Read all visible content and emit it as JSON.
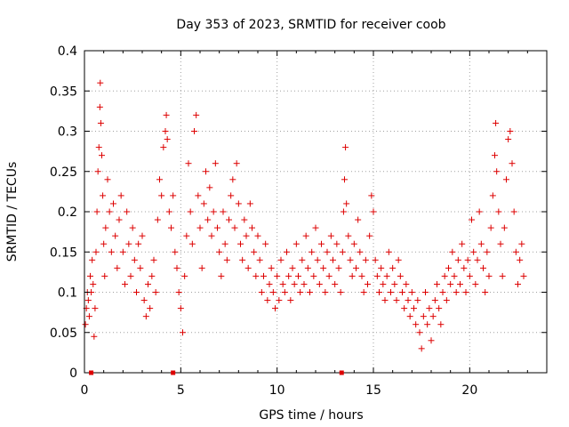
{
  "chart_data": {
    "type": "scatter",
    "title": "Day 353 of 2023, SRMTID for receiver coob",
    "xlabel": "GPS time / hours",
    "ylabel": "SRMTID / TECUs",
    "xlim": [
      0,
      24
    ],
    "ylim": [
      0,
      0.4
    ],
    "x_ticks": [
      "0",
      "5",
      "10",
      "15",
      "20"
    ],
    "x_tick_values": [
      0,
      5,
      10,
      15,
      20
    ],
    "y_ticks": [
      "0",
      "0.05",
      "0.1",
      "0.15",
      "0.2",
      "0.25",
      "0.3",
      "0.35",
      "0.4"
    ],
    "y_tick_values": [
      0,
      0.05,
      0.1,
      0.15,
      0.2,
      0.25,
      0.3,
      0.35,
      0.4
    ],
    "grid": true,
    "marker": "+",
    "color": "#dd0000",
    "zero_markers_x": [
      0.35,
      4.6,
      13.35
    ],
    "series": [
      {
        "name": "SRMTID",
        "points": [
          [
            0.05,
            0.06
          ],
          [
            0.1,
            0.08
          ],
          [
            0.15,
            0.1
          ],
          [
            0.2,
            0.09
          ],
          [
            0.25,
            0.07
          ],
          [
            0.3,
            0.12
          ],
          [
            0.35,
            0.1
          ],
          [
            0.4,
            0.14
          ],
          [
            0.45,
            0.11
          ],
          [
            0.5,
            0.045
          ],
          [
            0.55,
            0.08
          ],
          [
            0.6,
            0.15
          ],
          [
            0.65,
            0.2
          ],
          [
            0.7,
            0.25
          ],
          [
            0.75,
            0.28
          ],
          [
            0.8,
            0.33
          ],
          [
            0.82,
            0.36
          ],
          [
            0.85,
            0.31
          ],
          [
            0.9,
            0.27
          ],
          [
            0.95,
            0.22
          ],
          [
            1.0,
            0.16
          ],
          [
            1.05,
            0.12
          ],
          [
            1.1,
            0.18
          ],
          [
            1.2,
            0.24
          ],
          [
            1.3,
            0.2
          ],
          [
            1.4,
            0.15
          ],
          [
            1.5,
            0.21
          ],
          [
            1.6,
            0.17
          ],
          [
            1.7,
            0.13
          ],
          [
            1.8,
            0.19
          ],
          [
            1.9,
            0.22
          ],
          [
            2.0,
            0.15
          ],
          [
            2.1,
            0.11
          ],
          [
            2.2,
            0.2
          ],
          [
            2.3,
            0.16
          ],
          [
            2.4,
            0.12
          ],
          [
            2.5,
            0.18
          ],
          [
            2.6,
            0.14
          ],
          [
            2.7,
            0.1
          ],
          [
            2.8,
            0.16
          ],
          [
            2.9,
            0.13
          ],
          [
            3.0,
            0.17
          ],
          [
            3.1,
            0.09
          ],
          [
            3.2,
            0.07
          ],
          [
            3.3,
            0.11
          ],
          [
            3.4,
            0.08
          ],
          [
            3.5,
            0.12
          ],
          [
            3.6,
            0.14
          ],
          [
            3.7,
            0.1
          ],
          [
            3.8,
            0.19
          ],
          [
            3.9,
            0.24
          ],
          [
            4.0,
            0.22
          ],
          [
            4.1,
            0.28
          ],
          [
            4.2,
            0.3
          ],
          [
            4.25,
            0.32
          ],
          [
            4.3,
            0.29
          ],
          [
            4.4,
            0.2
          ],
          [
            4.5,
            0.18
          ],
          [
            4.6,
            0.22
          ],
          [
            4.7,
            0.15
          ],
          [
            4.8,
            0.13
          ],
          [
            4.9,
            0.1
          ],
          [
            5.0,
            0.08
          ],
          [
            5.1,
            0.05
          ],
          [
            5.2,
            0.12
          ],
          [
            5.3,
            0.17
          ],
          [
            5.4,
            0.26
          ],
          [
            5.5,
            0.2
          ],
          [
            5.6,
            0.16
          ],
          [
            5.7,
            0.3
          ],
          [
            5.8,
            0.32
          ],
          [
            5.9,
            0.22
          ],
          [
            6.0,
            0.18
          ],
          [
            6.1,
            0.13
          ],
          [
            6.2,
            0.21
          ],
          [
            6.3,
            0.25
          ],
          [
            6.4,
            0.19
          ],
          [
            6.5,
            0.23
          ],
          [
            6.6,
            0.17
          ],
          [
            6.7,
            0.2
          ],
          [
            6.8,
            0.26
          ],
          [
            6.9,
            0.18
          ],
          [
            7.0,
            0.15
          ],
          [
            7.1,
            0.12
          ],
          [
            7.2,
            0.2
          ],
          [
            7.3,
            0.16
          ],
          [
            7.4,
            0.14
          ],
          [
            7.5,
            0.19
          ],
          [
            7.6,
            0.22
          ],
          [
            7.7,
            0.24
          ],
          [
            7.8,
            0.18
          ],
          [
            7.9,
            0.26
          ],
          [
            8.0,
            0.21
          ],
          [
            8.1,
            0.16
          ],
          [
            8.2,
            0.14
          ],
          [
            8.3,
            0.19
          ],
          [
            8.4,
            0.17
          ],
          [
            8.5,
            0.13
          ],
          [
            8.6,
            0.21
          ],
          [
            8.7,
            0.18
          ],
          [
            8.8,
            0.15
          ],
          [
            8.9,
            0.12
          ],
          [
            9.0,
            0.17
          ],
          [
            9.1,
            0.14
          ],
          [
            9.2,
            0.1
          ],
          [
            9.3,
            0.12
          ],
          [
            9.4,
            0.16
          ],
          [
            9.5,
            0.09
          ],
          [
            9.6,
            0.11
          ],
          [
            9.7,
            0.13
          ],
          [
            9.8,
            0.1
          ],
          [
            9.9,
            0.08
          ],
          [
            10.0,
            0.12
          ],
          [
            10.1,
            0.09
          ],
          [
            10.2,
            0.14
          ],
          [
            10.3,
            0.11
          ],
          [
            10.4,
            0.1
          ],
          [
            10.5,
            0.15
          ],
          [
            10.6,
            0.12
          ],
          [
            10.7,
            0.09
          ],
          [
            10.8,
            0.13
          ],
          [
            10.9,
            0.11
          ],
          [
            11.0,
            0.16
          ],
          [
            11.1,
            0.12
          ],
          [
            11.2,
            0.1
          ],
          [
            11.3,
            0.14
          ],
          [
            11.4,
            0.11
          ],
          [
            11.5,
            0.17
          ],
          [
            11.6,
            0.13
          ],
          [
            11.7,
            0.1
          ],
          [
            11.8,
            0.15
          ],
          [
            11.9,
            0.12
          ],
          [
            12.0,
            0.18
          ],
          [
            12.1,
            0.14
          ],
          [
            12.2,
            0.11
          ],
          [
            12.3,
            0.16
          ],
          [
            12.4,
            0.13
          ],
          [
            12.5,
            0.1
          ],
          [
            12.6,
            0.15
          ],
          [
            12.7,
            0.12
          ],
          [
            12.8,
            0.17
          ],
          [
            12.9,
            0.14
          ],
          [
            13.0,
            0.11
          ],
          [
            13.1,
            0.16
          ],
          [
            13.2,
            0.13
          ],
          [
            13.3,
            0.1
          ],
          [
            13.4,
            0.15
          ],
          [
            13.45,
            0.2
          ],
          [
            13.5,
            0.24
          ],
          [
            13.55,
            0.28
          ],
          [
            13.6,
            0.21
          ],
          [
            13.7,
            0.17
          ],
          [
            13.8,
            0.14
          ],
          [
            13.9,
            0.12
          ],
          [
            14.0,
            0.16
          ],
          [
            14.1,
            0.13
          ],
          [
            14.2,
            0.19
          ],
          [
            14.3,
            0.15
          ],
          [
            14.4,
            0.12
          ],
          [
            14.5,
            0.1
          ],
          [
            14.6,
            0.14
          ],
          [
            14.7,
            0.11
          ],
          [
            14.8,
            0.17
          ],
          [
            14.9,
            0.22
          ],
          [
            15.0,
            0.2
          ],
          [
            15.1,
            0.14
          ],
          [
            15.2,
            0.12
          ],
          [
            15.3,
            0.1
          ],
          [
            15.4,
            0.13
          ],
          [
            15.5,
            0.11
          ],
          [
            15.6,
            0.09
          ],
          [
            15.7,
            0.12
          ],
          [
            15.8,
            0.15
          ],
          [
            15.9,
            0.1
          ],
          [
            16.0,
            0.13
          ],
          [
            16.1,
            0.11
          ],
          [
            16.2,
            0.09
          ],
          [
            16.3,
            0.14
          ],
          [
            16.4,
            0.12
          ],
          [
            16.5,
            0.1
          ],
          [
            16.6,
            0.08
          ],
          [
            16.7,
            0.11
          ],
          [
            16.8,
            0.09
          ],
          [
            16.9,
            0.07
          ],
          [
            17.0,
            0.1
          ],
          [
            17.1,
            0.08
          ],
          [
            17.2,
            0.06
          ],
          [
            17.3,
            0.09
          ],
          [
            17.4,
            0.05
          ],
          [
            17.5,
            0.03
          ],
          [
            17.6,
            0.07
          ],
          [
            17.7,
            0.1
          ],
          [
            17.8,
            0.06
          ],
          [
            17.9,
            0.08
          ],
          [
            18.0,
            0.04
          ],
          [
            18.1,
            0.07
          ],
          [
            18.2,
            0.09
          ],
          [
            18.3,
            0.11
          ],
          [
            18.4,
            0.08
          ],
          [
            18.5,
            0.06
          ],
          [
            18.6,
            0.1
          ],
          [
            18.7,
            0.12
          ],
          [
            18.8,
            0.09
          ],
          [
            18.9,
            0.13
          ],
          [
            19.0,
            0.11
          ],
          [
            19.1,
            0.15
          ],
          [
            19.2,
            0.12
          ],
          [
            19.3,
            0.1
          ],
          [
            19.4,
            0.14
          ],
          [
            19.5,
            0.11
          ],
          [
            19.6,
            0.16
          ],
          [
            19.7,
            0.13
          ],
          [
            19.8,
            0.1
          ],
          [
            19.9,
            0.14
          ],
          [
            20.0,
            0.12
          ],
          [
            20.1,
            0.19
          ],
          [
            20.2,
            0.15
          ],
          [
            20.3,
            0.11
          ],
          [
            20.4,
            0.14
          ],
          [
            20.5,
            0.2
          ],
          [
            20.6,
            0.16
          ],
          [
            20.7,
            0.13
          ],
          [
            20.8,
            0.1
          ],
          [
            20.9,
            0.15
          ],
          [
            21.0,
            0.12
          ],
          [
            21.1,
            0.18
          ],
          [
            21.2,
            0.22
          ],
          [
            21.3,
            0.27
          ],
          [
            21.35,
            0.31
          ],
          [
            21.4,
            0.25
          ],
          [
            21.5,
            0.2
          ],
          [
            21.6,
            0.16
          ],
          [
            21.7,
            0.12
          ],
          [
            21.8,
            0.18
          ],
          [
            21.9,
            0.24
          ],
          [
            22.0,
            0.29
          ],
          [
            22.1,
            0.3
          ],
          [
            22.2,
            0.26
          ],
          [
            22.3,
            0.2
          ],
          [
            22.4,
            0.15
          ],
          [
            22.5,
            0.11
          ],
          [
            22.6,
            0.14
          ],
          [
            22.7,
            0.16
          ],
          [
            22.8,
            0.12
          ]
        ]
      }
    ]
  }
}
